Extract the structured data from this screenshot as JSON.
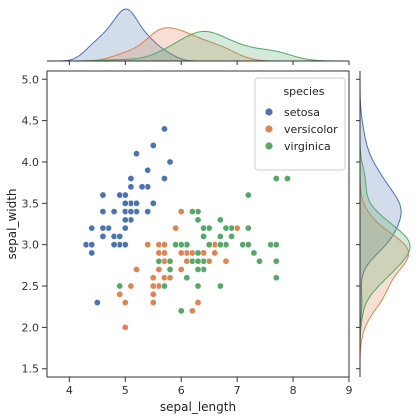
{
  "chart_data": {
    "type": "scatter",
    "title": "",
    "xlabel": "sepal_length",
    "ylabel": "sepal_width",
    "xlim": [
      3.6,
      9.0
    ],
    "ylim": [
      1.4,
      5.1
    ],
    "x_ticks": [
      "4",
      "5",
      "6",
      "7",
      "8",
      "9"
    ],
    "y_ticks": [
      "1.5",
      "2.0",
      "2.5",
      "3.0",
      "3.5",
      "4.0",
      "4.5",
      "5.0"
    ],
    "grid": false,
    "marginals": "kde",
    "legend": {
      "title": "species",
      "placement": "top-right",
      "entries": [
        "setosa",
        "versicolor",
        "virginica"
      ]
    },
    "series": [
      {
        "name": "setosa",
        "color": "#4c72b0",
        "points": [
          [
            5.1,
            3.5
          ],
          [
            4.9,
            3.0
          ],
          [
            4.7,
            3.2
          ],
          [
            4.6,
            3.1
          ],
          [
            5.0,
            3.6
          ],
          [
            5.4,
            3.9
          ],
          [
            4.6,
            3.4
          ],
          [
            5.0,
            3.4
          ],
          [
            4.4,
            2.9
          ],
          [
            4.9,
            3.1
          ],
          [
            5.4,
            3.7
          ],
          [
            4.8,
            3.4
          ],
          [
            4.8,
            3.0
          ],
          [
            4.3,
            3.0
          ],
          [
            5.8,
            4.0
          ],
          [
            5.7,
            4.4
          ],
          [
            5.4,
            3.9
          ],
          [
            5.1,
            3.5
          ],
          [
            5.7,
            3.8
          ],
          [
            5.1,
            3.8
          ],
          [
            5.4,
            3.4
          ],
          [
            5.1,
            3.7
          ],
          [
            4.6,
            3.6
          ],
          [
            5.1,
            3.3
          ],
          [
            4.8,
            3.4
          ],
          [
            5.0,
            3.0
          ],
          [
            5.0,
            3.4
          ],
          [
            5.2,
            3.5
          ],
          [
            5.2,
            3.4
          ],
          [
            4.7,
            3.2
          ],
          [
            4.8,
            3.1
          ],
          [
            5.4,
            3.4
          ],
          [
            5.2,
            4.1
          ],
          [
            5.5,
            4.2
          ],
          [
            4.9,
            3.1
          ],
          [
            5.0,
            3.2
          ],
          [
            5.5,
            3.5
          ],
          [
            4.9,
            3.6
          ],
          [
            4.4,
            3.0
          ],
          [
            5.1,
            3.4
          ],
          [
            5.0,
            3.5
          ],
          [
            4.5,
            2.3
          ],
          [
            4.4,
            3.2
          ],
          [
            5.0,
            3.5
          ],
          [
            5.1,
            3.8
          ],
          [
            4.8,
            3.0
          ],
          [
            5.1,
            3.8
          ],
          [
            4.6,
            3.2
          ],
          [
            5.3,
            3.7
          ],
          [
            5.0,
            3.3
          ]
        ]
      },
      {
        "name": "versicolor",
        "color": "#dd8452",
        "points": [
          [
            7.0,
            3.2
          ],
          [
            6.4,
            3.2
          ],
          [
            6.9,
            3.1
          ],
          [
            5.5,
            2.3
          ],
          [
            6.5,
            2.8
          ],
          [
            5.7,
            2.8
          ],
          [
            6.3,
            3.3
          ],
          [
            4.9,
            2.4
          ],
          [
            6.6,
            2.9
          ],
          [
            5.2,
            2.7
          ],
          [
            5.0,
            2.0
          ],
          [
            5.9,
            3.0
          ],
          [
            6.0,
            2.2
          ],
          [
            6.1,
            2.9
          ],
          [
            5.6,
            2.9
          ],
          [
            6.7,
            3.1
          ],
          [
            5.6,
            3.0
          ],
          [
            5.8,
            2.7
          ],
          [
            6.2,
            2.2
          ],
          [
            5.6,
            2.5
          ],
          [
            5.9,
            3.2
          ],
          [
            6.1,
            2.8
          ],
          [
            6.3,
            2.5
          ],
          [
            6.1,
            2.8
          ],
          [
            6.4,
            2.9
          ],
          [
            6.6,
            3.0
          ],
          [
            6.8,
            2.8
          ],
          [
            6.7,
            3.0
          ],
          [
            6.0,
            2.9
          ],
          [
            5.7,
            2.6
          ],
          [
            5.5,
            2.4
          ],
          [
            5.5,
            2.4
          ],
          [
            5.8,
            2.7
          ],
          [
            6.0,
            2.7
          ],
          [
            5.4,
            3.0
          ],
          [
            6.0,
            3.4
          ],
          [
            6.7,
            3.1
          ],
          [
            6.3,
            2.3
          ],
          [
            5.6,
            3.0
          ],
          [
            5.5,
            2.5
          ],
          [
            5.5,
            2.6
          ],
          [
            6.1,
            3.0
          ],
          [
            5.8,
            2.6
          ],
          [
            5.0,
            2.3
          ],
          [
            5.6,
            2.7
          ],
          [
            5.7,
            3.0
          ],
          [
            5.7,
            2.9
          ],
          [
            6.2,
            2.9
          ],
          [
            5.1,
            2.5
          ],
          [
            5.7,
            2.8
          ]
        ]
      },
      {
        "name": "virginica",
        "color": "#55a868",
        "points": [
          [
            6.3,
            3.3
          ],
          [
            5.8,
            2.7
          ],
          [
            7.1,
            3.0
          ],
          [
            6.3,
            2.9
          ],
          [
            6.5,
            3.0
          ],
          [
            7.6,
            3.0
          ],
          [
            4.9,
            2.5
          ],
          [
            7.3,
            2.9
          ],
          [
            6.7,
            2.5
          ],
          [
            7.2,
            3.6
          ],
          [
            6.5,
            3.2
          ],
          [
            6.4,
            2.7
          ],
          [
            6.8,
            3.0
          ],
          [
            5.7,
            2.5
          ],
          [
            5.8,
            2.8
          ],
          [
            6.4,
            3.2
          ],
          [
            6.5,
            3.0
          ],
          [
            7.7,
            3.8
          ],
          [
            7.7,
            2.6
          ],
          [
            6.0,
            2.2
          ],
          [
            6.9,
            3.2
          ],
          [
            5.6,
            2.8
          ],
          [
            7.7,
            2.8
          ],
          [
            6.3,
            2.7
          ],
          [
            6.7,
            3.3
          ],
          [
            7.2,
            3.2
          ],
          [
            6.2,
            2.8
          ],
          [
            6.1,
            3.0
          ],
          [
            6.4,
            2.8
          ],
          [
            7.2,
            3.0
          ],
          [
            7.4,
            2.8
          ],
          [
            7.9,
            3.8
          ],
          [
            6.4,
            2.8
          ],
          [
            6.3,
            2.8
          ],
          [
            6.1,
            2.6
          ],
          [
            7.7,
            3.0
          ],
          [
            6.3,
            3.4
          ],
          [
            6.4,
            3.1
          ],
          [
            6.0,
            3.0
          ],
          [
            6.9,
            3.1
          ],
          [
            6.7,
            3.1
          ],
          [
            6.9,
            3.1
          ],
          [
            5.8,
            2.7
          ],
          [
            6.8,
            3.2
          ],
          [
            6.7,
            3.3
          ],
          [
            6.7,
            3.0
          ],
          [
            6.3,
            2.5
          ],
          [
            6.5,
            3.0
          ],
          [
            6.2,
            3.4
          ],
          [
            5.9,
            3.0
          ]
        ]
      }
    ]
  }
}
